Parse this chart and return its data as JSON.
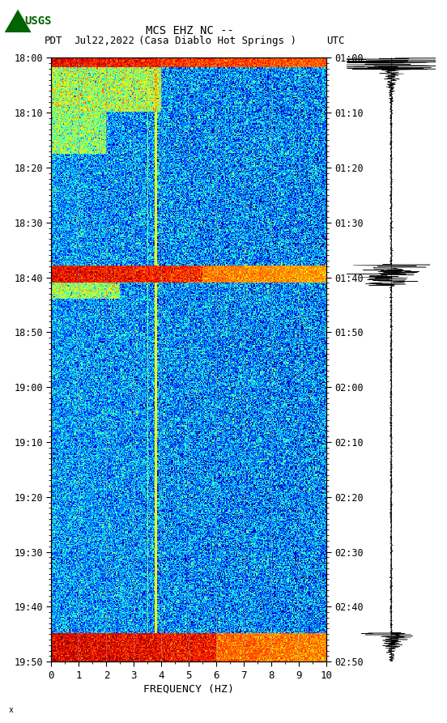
{
  "title_line1": "MCS EHZ NC --",
  "title_line2_pdt": "PDT   Jul22,2022    (Casa Diablo Hot Springs )",
  "title_line2_utc": "UTC",
  "xlabel": "FREQUENCY (HZ)",
  "freq_min": 0,
  "freq_max": 10,
  "left_ticks_pdt": [
    "18:00",
    "18:10",
    "18:20",
    "18:30",
    "18:40",
    "18:50",
    "19:00",
    "19:10",
    "19:20",
    "19:30",
    "19:40",
    "19:50"
  ],
  "right_ticks_utc": [
    "01:00",
    "01:10",
    "01:20",
    "01:30",
    "01:40",
    "01:50",
    "02:00",
    "02:10",
    "02:20",
    "02:30",
    "02:40",
    "02:50"
  ],
  "freq_ticks": [
    0,
    1,
    2,
    3,
    4,
    5,
    6,
    7,
    8,
    9,
    10
  ],
  "vertical_lines_freq": [
    1,
    2,
    3,
    4,
    5,
    6,
    7,
    8,
    9
  ],
  "usgs_logo_color": "#006400",
  "figsize": [
    5.52,
    8.93
  ],
  "dpi": 100,
  "total_minutes": 110,
  "tick_interval_minutes": 10,
  "n_freq": 300,
  "n_time": 660,
  "seed": 42
}
